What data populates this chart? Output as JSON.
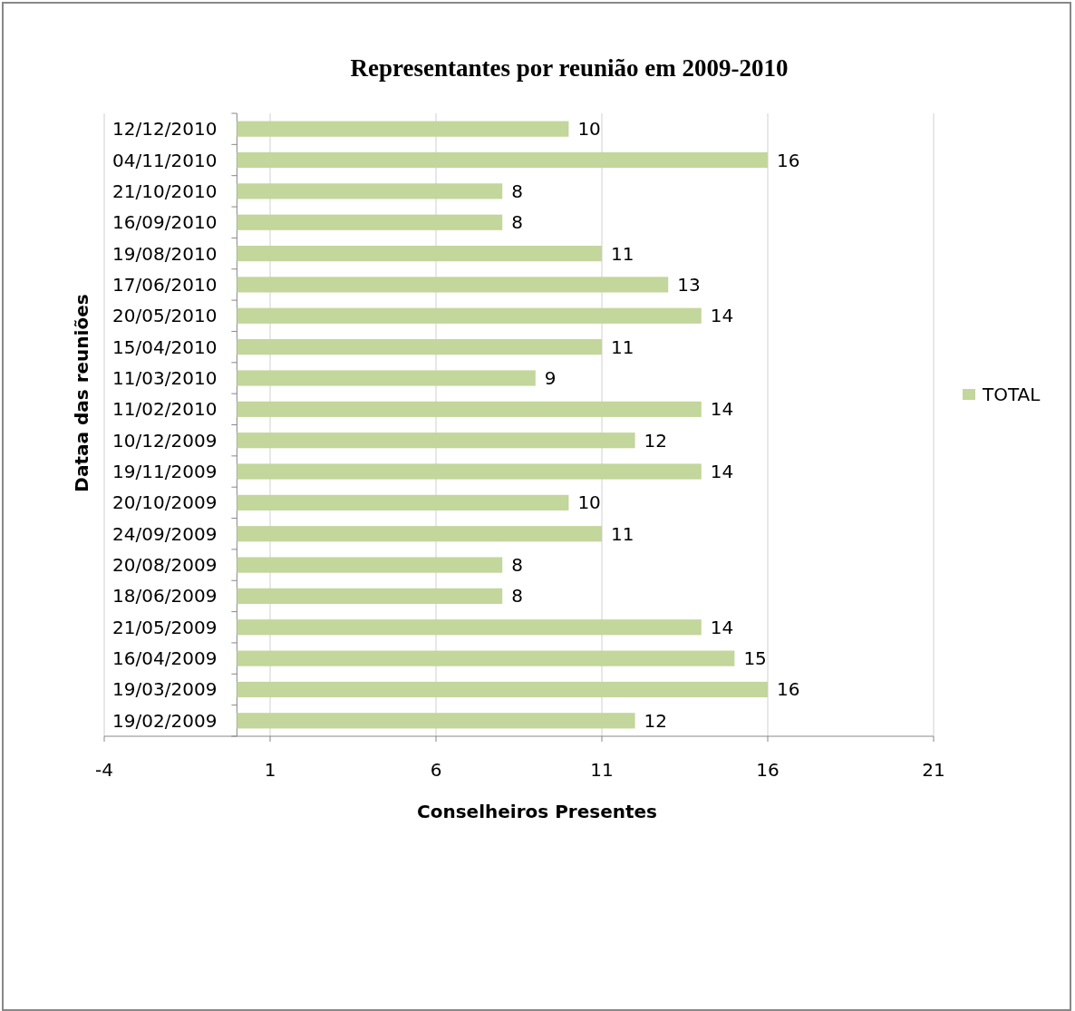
{
  "chart_data": {
    "type": "bar",
    "orientation": "horizontal",
    "title": "Representantes por reunião em 2009-2010",
    "xlabel": "Conselheiros Presentes",
    "ylabel": "Dataa  das reuniões",
    "categories": [
      "12/12/2010",
      "04/11/2010",
      "21/10/2010",
      "16/09/2010",
      "19/08/2010",
      "17/06/2010",
      "20/05/2010",
      "15/04/2010",
      "11/03/2010",
      "11/02/2010",
      "10/12/2009",
      "19/11/2009",
      "20/10/2009",
      "24/09/2009",
      "20/08/2009",
      "18/06/2009",
      "21/05/2009",
      "16/04/2009",
      "19/03/2009",
      "19/02/2009"
    ],
    "series": [
      {
        "name": "TOTAL",
        "color": "#c3d69b",
        "values": [
          10,
          16,
          8,
          8,
          11,
          13,
          14,
          11,
          9,
          14,
          12,
          14,
          10,
          11,
          8,
          8,
          14,
          15,
          16,
          12
        ]
      }
    ],
    "xlim": [
      -4,
      21
    ],
    "xticks": [
      -4,
      1,
      6,
      11,
      16,
      21
    ],
    "grid": "x",
    "legend": "right",
    "data_labels": true
  }
}
